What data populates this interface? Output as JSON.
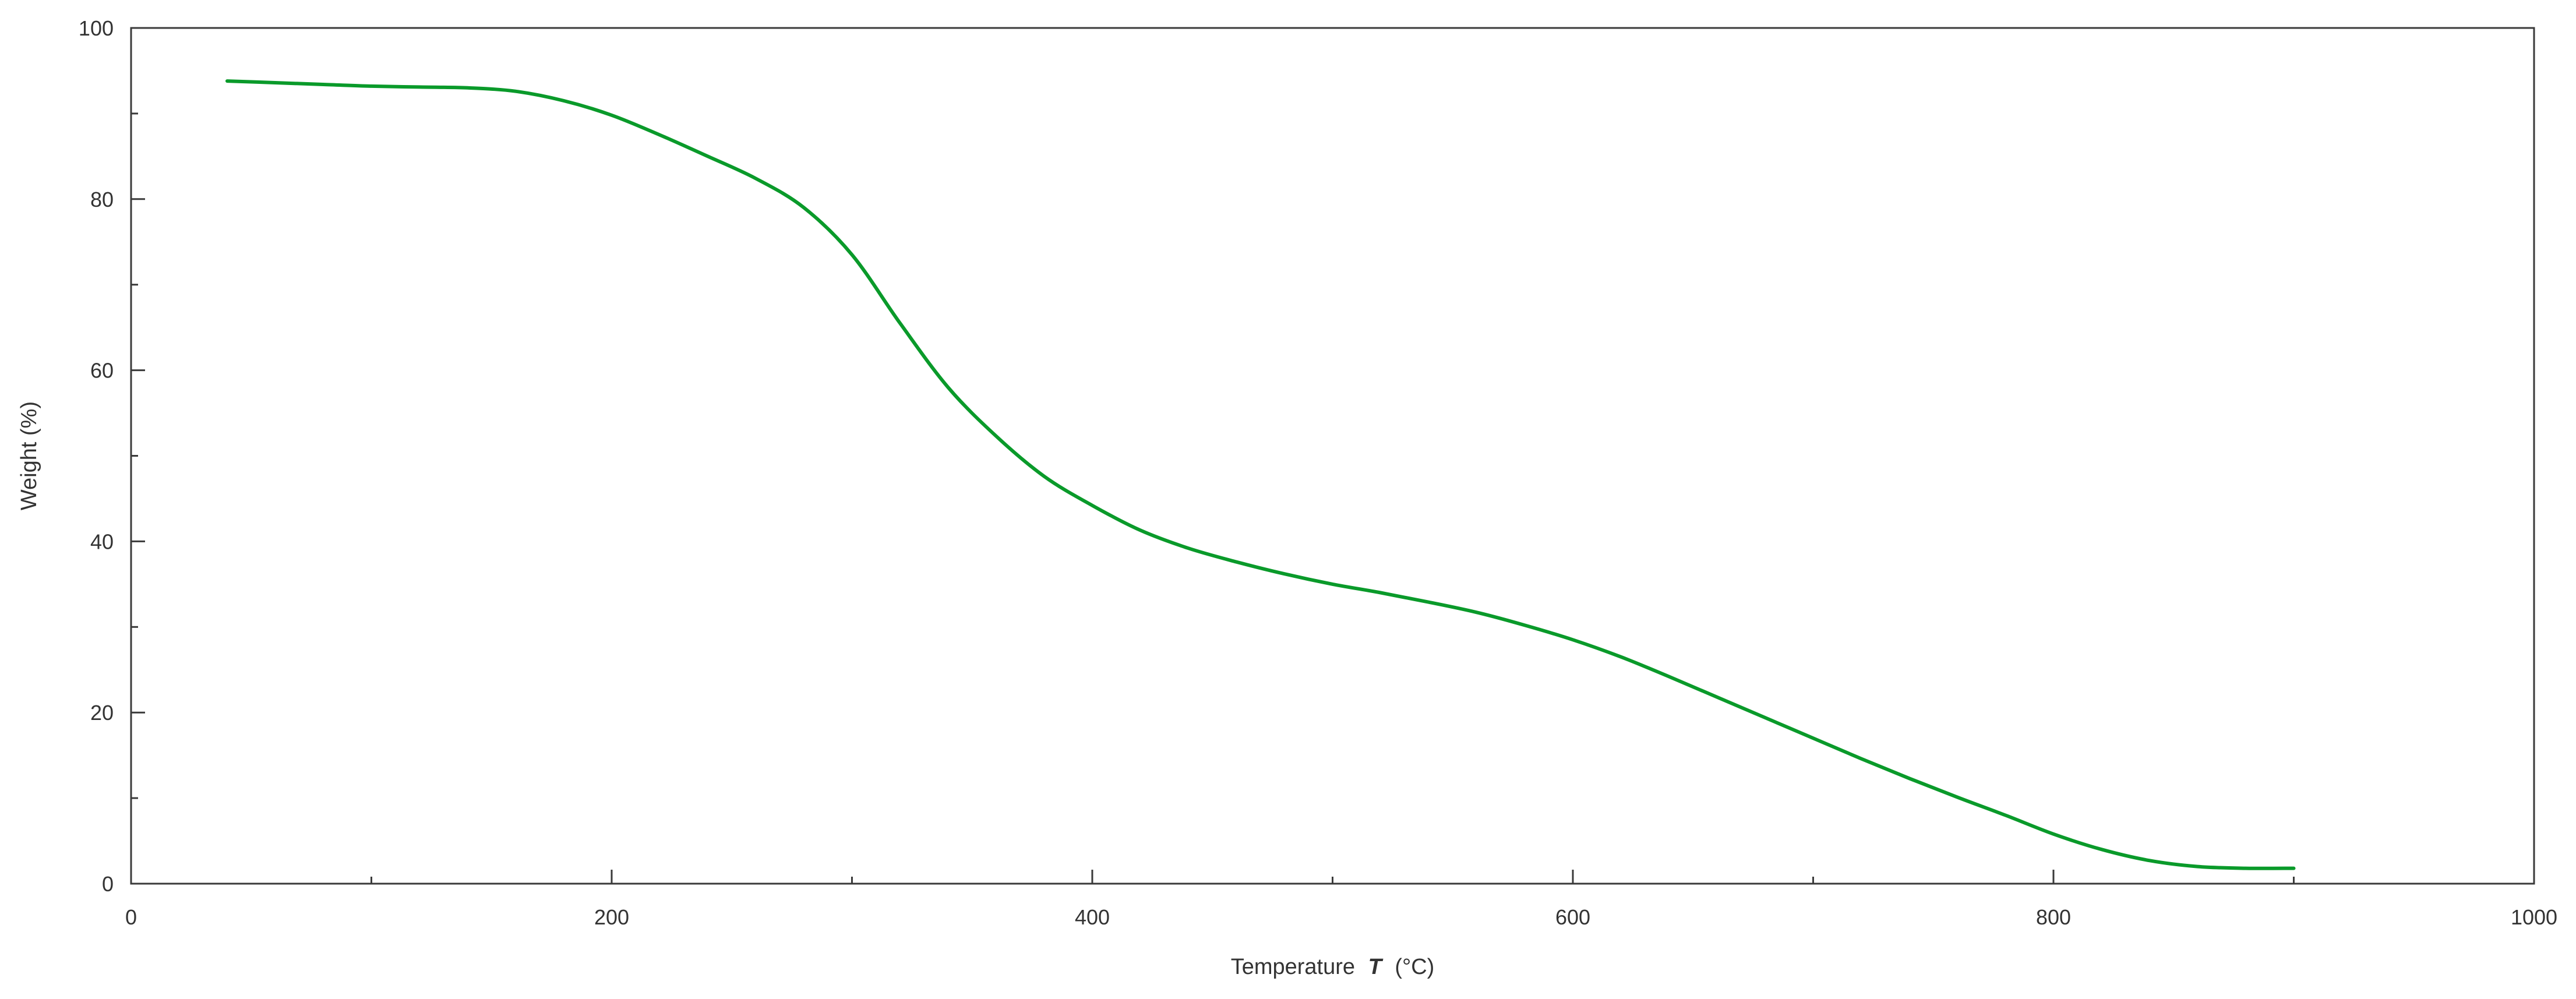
{
  "chart_data": {
    "type": "line",
    "title": "",
    "xlabel": "Temperature",
    "xlabel_symbol": "T",
    "xlabel_unit": "(°C)",
    "ylabel": "Weight (%)",
    "xlim": [
      0,
      1000
    ],
    "ylim": [
      0,
      100
    ],
    "x_ticks": [
      0,
      200,
      400,
      600,
      800,
      1000
    ],
    "y_ticks": [
      0,
      20,
      40,
      60,
      80,
      100
    ],
    "x_minor_step": 100,
    "y_minor_step": 10,
    "grid": false,
    "legend": false,
    "line_color": "#0a9a2a",
    "series": [
      {
        "x": [
          40,
          60,
          80,
          100,
          120,
          140,
          160,
          180,
          200,
          220,
          240,
          260,
          280,
          300,
          320,
          340,
          360,
          380,
          400,
          420,
          440,
          460,
          480,
          500,
          520,
          540,
          560,
          580,
          600,
          620,
          640,
          660,
          680,
          700,
          720,
          740,
          760,
          780,
          800,
          820,
          840,
          860,
          880,
          900
        ],
        "y": [
          93.8,
          93.6,
          93.4,
          93.2,
          93.1,
          93.0,
          92.6,
          91.5,
          89.8,
          87.5,
          85.0,
          82.4,
          79.0,
          73.5,
          65.5,
          58.0,
          52.3,
          47.6,
          44.2,
          41.3,
          39.2,
          37.6,
          36.2,
          35.0,
          34.0,
          32.9,
          31.7,
          30.2,
          28.5,
          26.5,
          24.2,
          21.8,
          19.4,
          17.0,
          14.6,
          12.3,
          10.1,
          8.0,
          5.8,
          4.0,
          2.7,
          2.0,
          1.8,
          1.8
        ]
      }
    ]
  }
}
